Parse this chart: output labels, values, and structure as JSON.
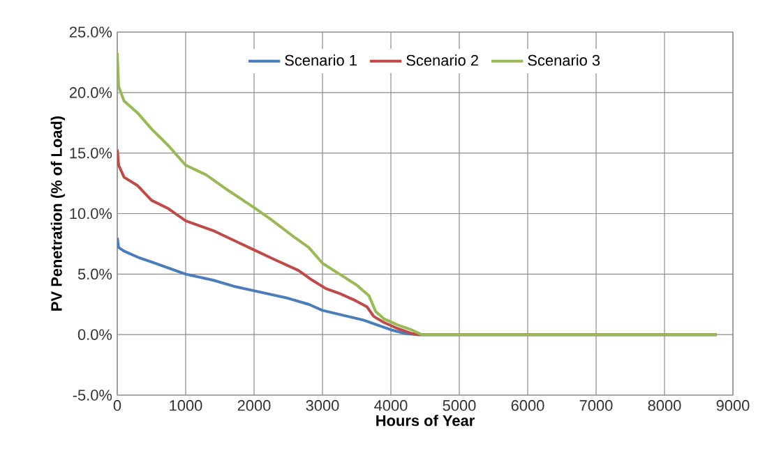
{
  "chart_data": {
    "type": "line",
    "xlabel": "Hours of Year",
    "ylabel": "PV Penetration (% of Load)",
    "xlim": [
      0,
      9000
    ],
    "xticks": [
      0,
      1000,
      2000,
      3000,
      4000,
      5000,
      6000,
      7000,
      8000,
      9000
    ],
    "ylim": [
      -5,
      25
    ],
    "yticks": [
      {
        "value": -5,
        "label": "-5.0%"
      },
      {
        "value": 0,
        "label": "0.0%"
      },
      {
        "value": 5,
        "label": "5.0%"
      },
      {
        "value": 10,
        "label": "10.0%"
      },
      {
        "value": 15,
        "label": "15.0%"
      },
      {
        "value": 20,
        "label": "20.0%"
      },
      {
        "value": 25,
        "label": "25.0%"
      }
    ],
    "grid": true,
    "legend": "top",
    "marker": "none",
    "line_style": "solid",
    "series": [
      {
        "name": "Scenario 1",
        "color": "#4a7ebb",
        "x": [
          0,
          20,
          100,
          300,
          500,
          750,
          1000,
          1400,
          1700,
          2100,
          2500,
          2800,
          3000,
          3300,
          3600,
          3800,
          4000,
          4200,
          4400,
          8760
        ],
        "values": [
          8.0,
          7.2,
          6.9,
          6.4,
          6.0,
          5.5,
          5.0,
          4.5,
          4.0,
          3.5,
          3.0,
          2.5,
          2.0,
          1.6,
          1.2,
          0.8,
          0.4,
          0.1,
          0,
          0
        ]
      },
      {
        "name": "Scenario 2",
        "color": "#be4b48",
        "x": [
          0,
          20,
          100,
          300,
          500,
          750,
          1000,
          1400,
          1700,
          2000,
          2300,
          2650,
          2850,
          3050,
          3250,
          3450,
          3650,
          3750,
          3900,
          4100,
          4300,
          4400,
          8760
        ],
        "values": [
          15.3,
          14.0,
          13.0,
          12.3,
          11.1,
          10.4,
          9.4,
          8.6,
          7.8,
          7.0,
          6.2,
          5.3,
          4.5,
          3.8,
          3.4,
          2.9,
          2.3,
          1.5,
          1.0,
          0.5,
          0.1,
          0,
          0
        ]
      },
      {
        "name": "Scenario 3",
        "color": "#98b954",
        "x": [
          0,
          20,
          100,
          300,
          500,
          750,
          1000,
          1300,
          1600,
          2000,
          2250,
          2600,
          2800,
          3000,
          3250,
          3500,
          3680,
          3780,
          3900,
          4100,
          4300,
          4450,
          8760
        ],
        "values": [
          23.3,
          20.5,
          19.3,
          18.3,
          17.0,
          15.6,
          14.0,
          13.2,
          12.0,
          10.5,
          9.5,
          8.0,
          7.2,
          5.9,
          5.0,
          4.1,
          3.2,
          1.9,
          1.3,
          0.8,
          0.4,
          0,
          0
        ]
      }
    ]
  }
}
